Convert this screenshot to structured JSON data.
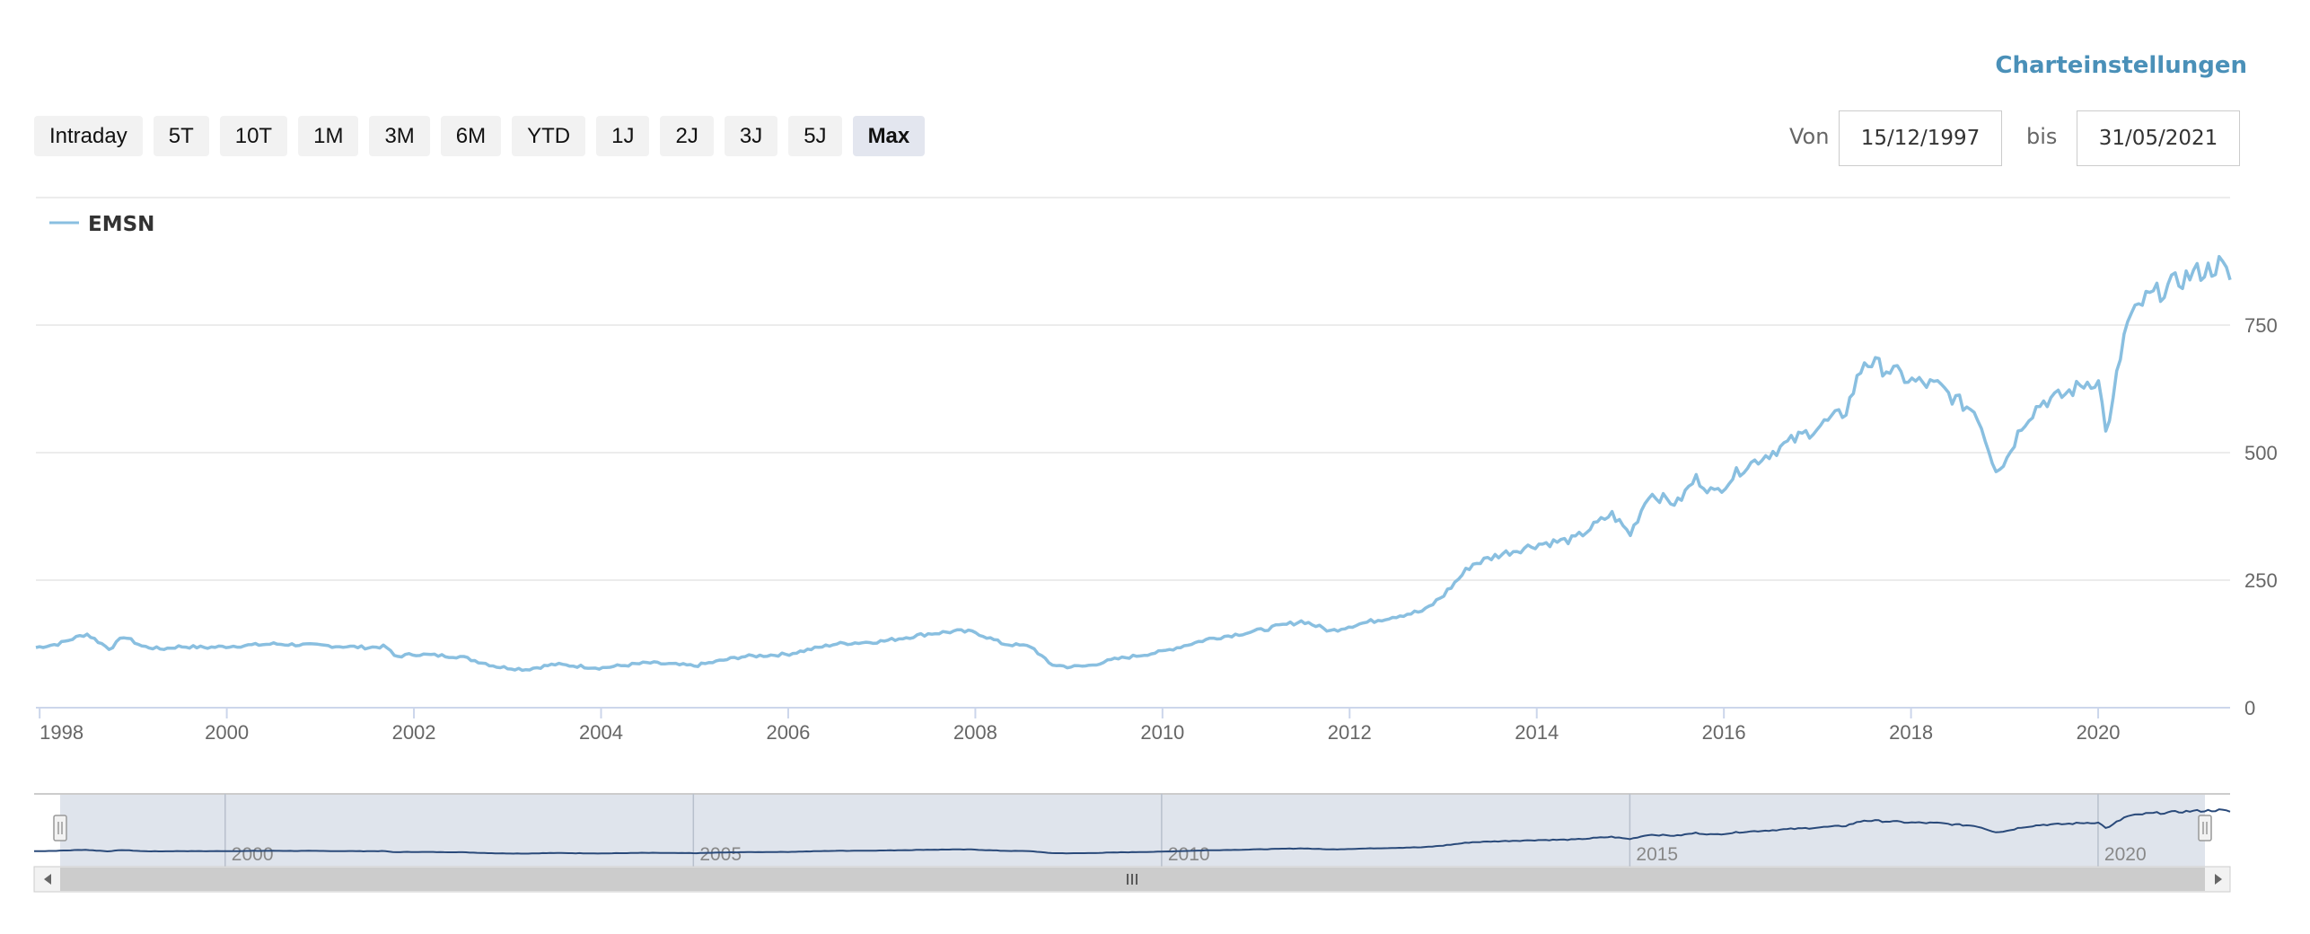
{
  "settings_label": "Charteinstellungen",
  "range_buttons": [
    "Intraday",
    "5T",
    "10T",
    "1M",
    "3M",
    "6M",
    "YTD",
    "1J",
    "2J",
    "3J",
    "5J",
    "Max"
  ],
  "active_range": "Max",
  "date_range": {
    "from_label": "Von",
    "from_value": "15/12/1997",
    "to_label": "bis",
    "to_value": "31/05/2021"
  },
  "colors": {
    "series_line": "#89bfe0",
    "navigator_line": "#2a4a7a",
    "navigator_mask": "#dfe4ec",
    "grid": "#e6e6e6",
    "active_button": "#e3e6ef"
  },
  "chart_data": {
    "type": "line",
    "title": "",
    "xlabel": "",
    "ylabel": "",
    "legend": {
      "position": "top-left",
      "entries": [
        "EMSN"
      ]
    },
    "grid": true,
    "y_axis_side": "right",
    "xlim": [
      1997.96,
      2021.41
    ],
    "ylim": [
      0,
      1000
    ],
    "yticks": [
      0,
      250,
      500,
      750
    ],
    "xticks": [
      "1998",
      "2000",
      "2002",
      "2004",
      "2006",
      "2008",
      "2010",
      "2012",
      "2014",
      "2016",
      "2018",
      "2020"
    ],
    "series": [
      {
        "name": "EMSN",
        "x": [
          1997.96,
          1998.2,
          1998.5,
          1998.75,
          1998.9,
          1999.1,
          1999.3,
          1999.5,
          1999.8,
          2000.0,
          2000.5,
          2001.0,
          2001.5,
          2001.7,
          2001.8,
          2002.0,
          2002.5,
          2002.9,
          2003.2,
          2003.5,
          2004.0,
          2004.5,
          2005.0,
          2005.5,
          2006.0,
          2006.5,
          2007.0,
          2007.5,
          2007.8,
          2008.0,
          2008.3,
          2008.6,
          2008.8,
          2009.0,
          2009.2,
          2009.5,
          2010.0,
          2010.5,
          2011.0,
          2011.5,
          2011.8,
          2012.0,
          2012.5,
          2012.8,
          2013.0,
          2013.3,
          2013.6,
          2014.0,
          2014.4,
          2014.8,
          2015.0,
          2015.2,
          2015.5,
          2015.7,
          2015.9,
          2016.2,
          2016.5,
          2016.8,
          2017.1,
          2017.3,
          2017.5,
          2017.8,
          2018.0,
          2018.3,
          2018.5,
          2018.7,
          2018.9,
          2019.0,
          2019.2,
          2019.4,
          2019.6,
          2019.9,
          2020.0,
          2020.1,
          2020.2,
          2020.3,
          2020.5,
          2020.8,
          2021.0,
          2021.2,
          2021.3,
          2021.41
        ],
        "y": [
          118,
          125,
          145,
          115,
          140,
          120,
          115,
          120,
          118,
          120,
          125,
          122,
          118,
          120,
          100,
          105,
          100,
          80,
          75,
          85,
          78,
          88,
          82,
          100,
          105,
          125,
          130,
          145,
          150,
          148,
          125,
          120,
          85,
          80,
          82,
          95,
          110,
          135,
          150,
          170,
          150,
          160,
          180,
          190,
          220,
          280,
          300,
          320,
          330,
          380,
          340,
          420,
          400,
          450,
          420,
          470,
          500,
          530,
          560,
          580,
          680,
          660,
          640,
          630,
          600,
          580,
          470,
          480,
          560,
          600,
          610,
          640,
          640,
          530,
          650,
          750,
          800,
          830,
          850,
          860,
          870,
          840
        ]
      }
    ],
    "navigator": {
      "ticks": [
        "2000",
        "2005",
        "2010",
        "2015",
        "2020"
      ]
    }
  }
}
